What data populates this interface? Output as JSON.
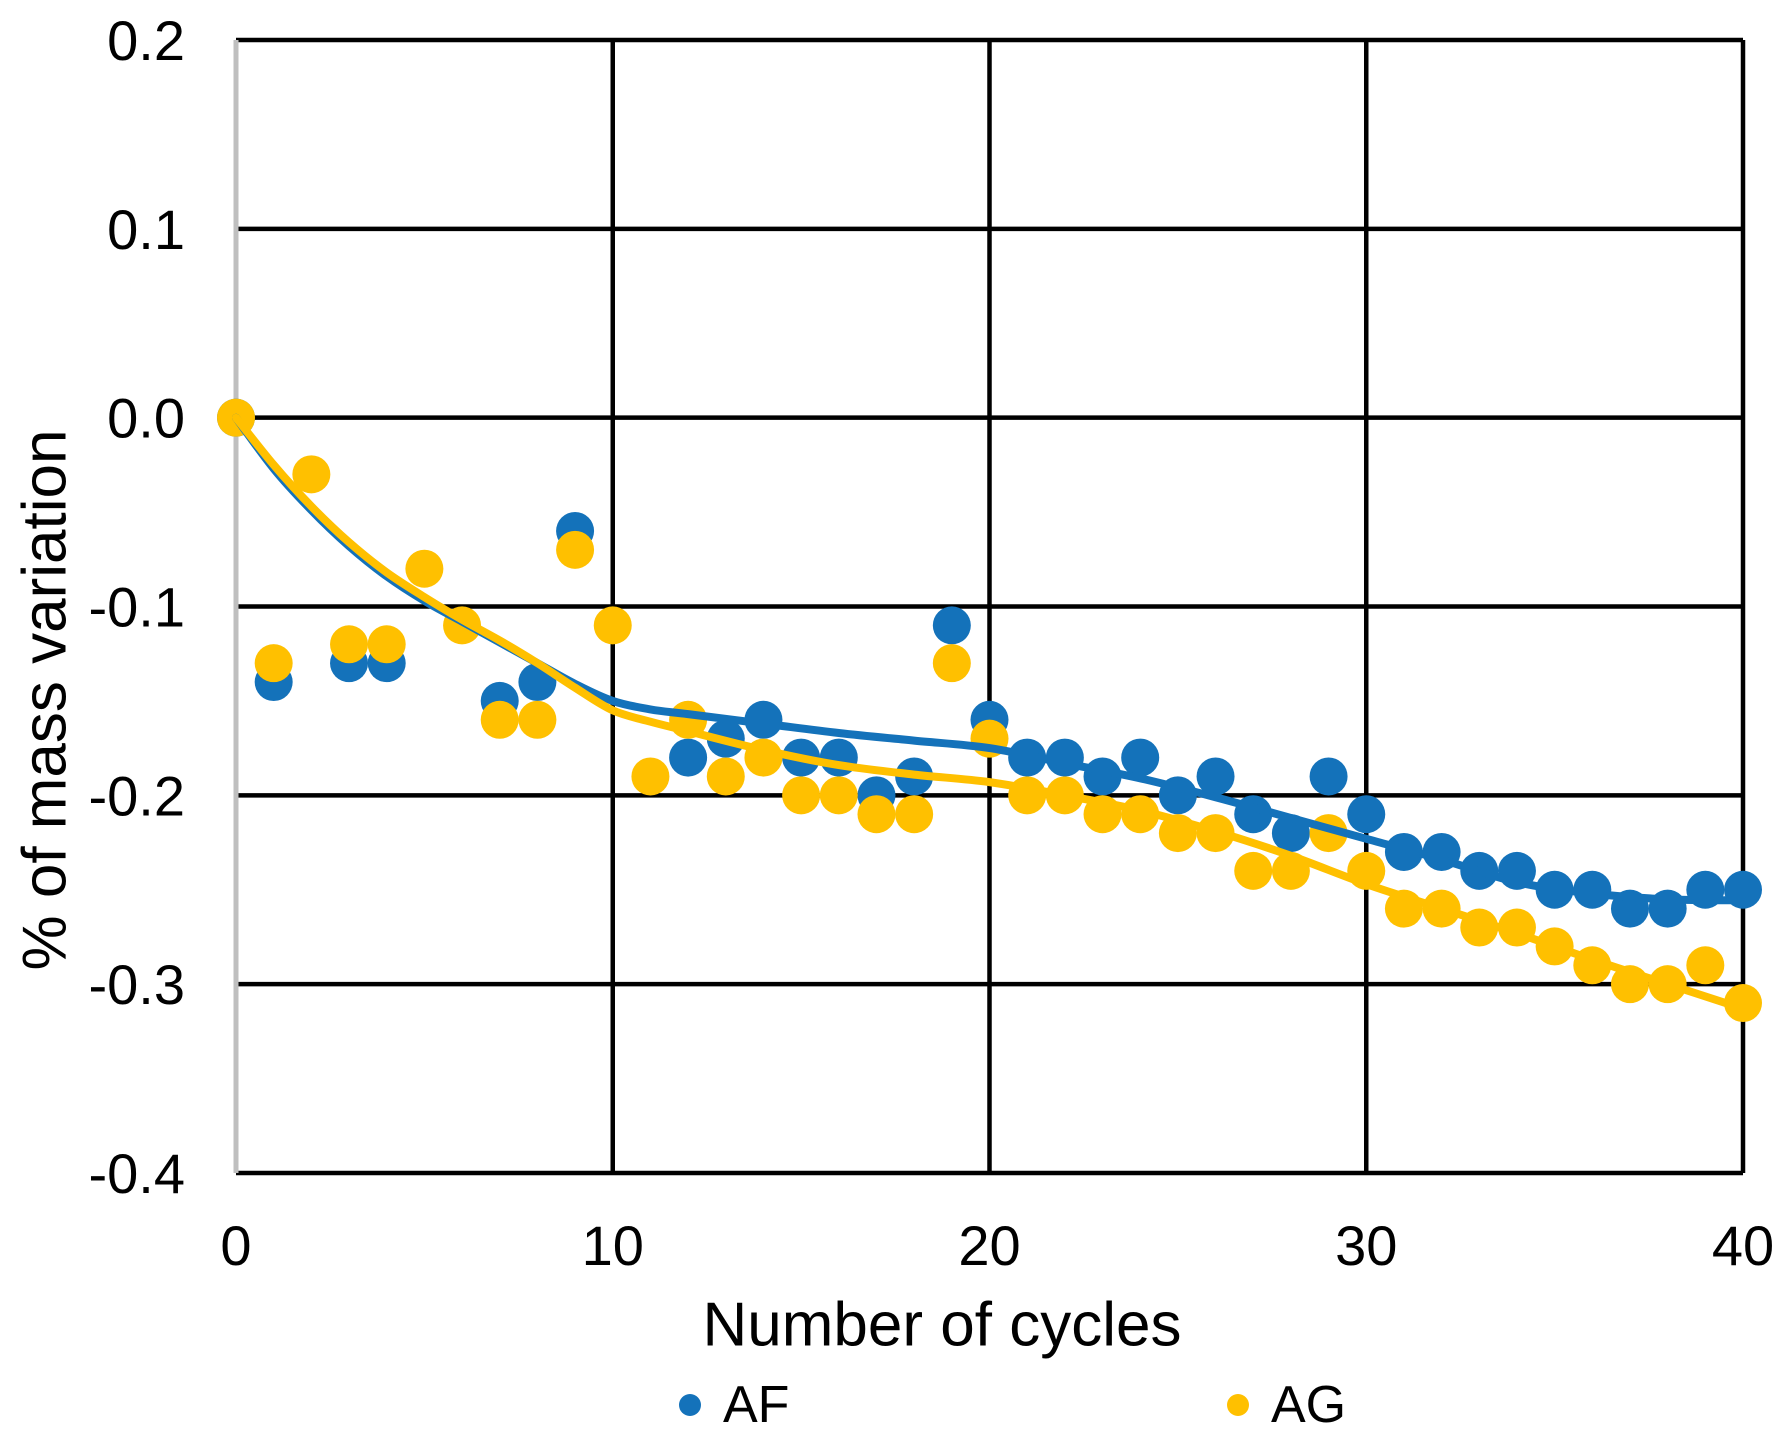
{
  "chart_data": {
    "type": "scatter",
    "title": "",
    "xlabel": "Number of cycles",
    "ylabel": "% of mass variation",
    "xlim": [
      0,
      40
    ],
    "ylim": [
      -0.4,
      0.2
    ],
    "x_tick_values": [
      0,
      10,
      20,
      30,
      40
    ],
    "x_tick_labels": [
      "0",
      "10",
      "20",
      "30",
      "40"
    ],
    "y_tick_values": [
      0.2,
      0.1,
      0.0,
      -0.1,
      -0.2,
      -0.3,
      -0.4
    ],
    "y_tick_labels": [
      "0.2",
      "0.1",
      "0.0",
      "-0.1",
      "-0.2",
      "-0.3",
      "-0.4"
    ],
    "grid": true,
    "gridline_color": "#000000",
    "axis_line_color": "#BFBFBF",
    "legend_position": "bottom",
    "series": [
      {
        "name": "AF",
        "color": "#1472BA",
        "points": [
          [
            0,
            0.0
          ],
          [
            1,
            -0.14
          ],
          [
            3,
            -0.13
          ],
          [
            4,
            -0.13
          ],
          [
            7,
            -0.15
          ],
          [
            8,
            -0.14
          ],
          [
            9,
            -0.06
          ],
          [
            12,
            -0.18
          ],
          [
            13,
            -0.17
          ],
          [
            14,
            -0.16
          ],
          [
            15,
            -0.18
          ],
          [
            16,
            -0.18
          ],
          [
            17,
            -0.2
          ],
          [
            18,
            -0.19
          ],
          [
            19,
            -0.11
          ],
          [
            20,
            -0.16
          ],
          [
            21,
            -0.18
          ],
          [
            22,
            -0.18
          ],
          [
            23,
            -0.19
          ],
          [
            24,
            -0.18
          ],
          [
            25,
            -0.2
          ],
          [
            26,
            -0.19
          ],
          [
            27,
            -0.21
          ],
          [
            28,
            -0.22
          ],
          [
            29,
            -0.19
          ],
          [
            30,
            -0.21
          ],
          [
            31,
            -0.23
          ],
          [
            32,
            -0.23
          ],
          [
            33,
            -0.24
          ],
          [
            34,
            -0.24
          ],
          [
            35,
            -0.25
          ],
          [
            36,
            -0.25
          ],
          [
            37,
            -0.26
          ],
          [
            38,
            -0.26
          ],
          [
            39,
            -0.25
          ],
          [
            40,
            -0.25
          ]
        ],
        "trendline": [
          [
            0,
            0
          ],
          [
            1,
            -0.027
          ],
          [
            2,
            -0.049
          ],
          [
            3,
            -0.068
          ],
          [
            4,
            -0.084
          ],
          [
            5,
            -0.097
          ],
          [
            6,
            -0.108
          ],
          [
            7,
            -0.119
          ],
          [
            8,
            -0.13
          ],
          [
            9,
            -0.141
          ],
          [
            10,
            -0.15
          ],
          [
            11,
            -0.1545
          ],
          [
            12,
            -0.157
          ],
          [
            14,
            -0.162
          ],
          [
            16,
            -0.167
          ],
          [
            18,
            -0.171
          ],
          [
            20,
            -0.175
          ],
          [
            22,
            -0.183
          ],
          [
            24,
            -0.191
          ],
          [
            26,
            -0.201
          ],
          [
            28,
            -0.212
          ],
          [
            30,
            -0.223
          ],
          [
            32,
            -0.234
          ],
          [
            34,
            -0.246
          ],
          [
            36,
            -0.252
          ],
          [
            38,
            -0.2551
          ],
          [
            40,
            -0.2556
          ]
        ]
      },
      {
        "name": "AG",
        "color": "#FFC000",
        "points": [
          [
            0,
            0.0
          ],
          [
            1,
            -0.13
          ],
          [
            2,
            -0.03
          ],
          [
            3,
            -0.12
          ],
          [
            4,
            -0.12
          ],
          [
            5,
            -0.08
          ],
          [
            6,
            -0.11
          ],
          [
            7,
            -0.16
          ],
          [
            8,
            -0.16
          ],
          [
            9,
            -0.07
          ],
          [
            10,
            -0.11
          ],
          [
            11,
            -0.19
          ],
          [
            12,
            -0.16
          ],
          [
            13,
            -0.19
          ],
          [
            14,
            -0.18
          ],
          [
            15,
            -0.2
          ],
          [
            16,
            -0.2
          ],
          [
            17,
            -0.21
          ],
          [
            18,
            -0.21
          ],
          [
            19,
            -0.13
          ],
          [
            20,
            -0.17
          ],
          [
            21,
            -0.2
          ],
          [
            22,
            -0.2
          ],
          [
            23,
            -0.21
          ],
          [
            24,
            -0.21
          ],
          [
            25,
            -0.22
          ],
          [
            26,
            -0.22
          ],
          [
            27,
            -0.24
          ],
          [
            28,
            -0.24
          ],
          [
            29,
            -0.22
          ],
          [
            30,
            -0.24
          ],
          [
            31,
            -0.26
          ],
          [
            32,
            -0.26
          ],
          [
            33,
            -0.27
          ],
          [
            34,
            -0.27
          ],
          [
            35,
            -0.28
          ],
          [
            36,
            -0.29
          ],
          [
            37,
            -0.3
          ],
          [
            38,
            -0.3
          ],
          [
            39,
            -0.29
          ],
          [
            40,
            -0.31
          ]
        ],
        "trendline": [
          [
            0,
            0
          ],
          [
            1,
            -0.025
          ],
          [
            2,
            -0.047
          ],
          [
            3,
            -0.066
          ],
          [
            4,
            -0.082
          ],
          [
            5,
            -0.095
          ],
          [
            6,
            -0.107
          ],
          [
            7,
            -0.118
          ],
          [
            8,
            -0.13
          ],
          [
            9,
            -0.143
          ],
          [
            10,
            -0.155
          ],
          [
            11,
            -0.161
          ],
          [
            12,
            -0.166
          ],
          [
            14,
            -0.176
          ],
          [
            16,
            -0.184
          ],
          [
            18,
            -0.189
          ],
          [
            20,
            -0.193
          ],
          [
            22,
            -0.2
          ],
          [
            24,
            -0.208
          ],
          [
            26,
            -0.219
          ],
          [
            28,
            -0.232
          ],
          [
            30,
            -0.247
          ],
          [
            32,
            -0.26
          ],
          [
            34,
            -0.273
          ],
          [
            36,
            -0.287
          ],
          [
            38,
            -0.3
          ],
          [
            40,
            -0.313
          ]
        ]
      }
    ]
  },
  "legend": {
    "items": [
      {
        "label": "AF",
        "marker": "blue-dot"
      },
      {
        "label": "AG",
        "marker": "gold-dot"
      }
    ]
  }
}
